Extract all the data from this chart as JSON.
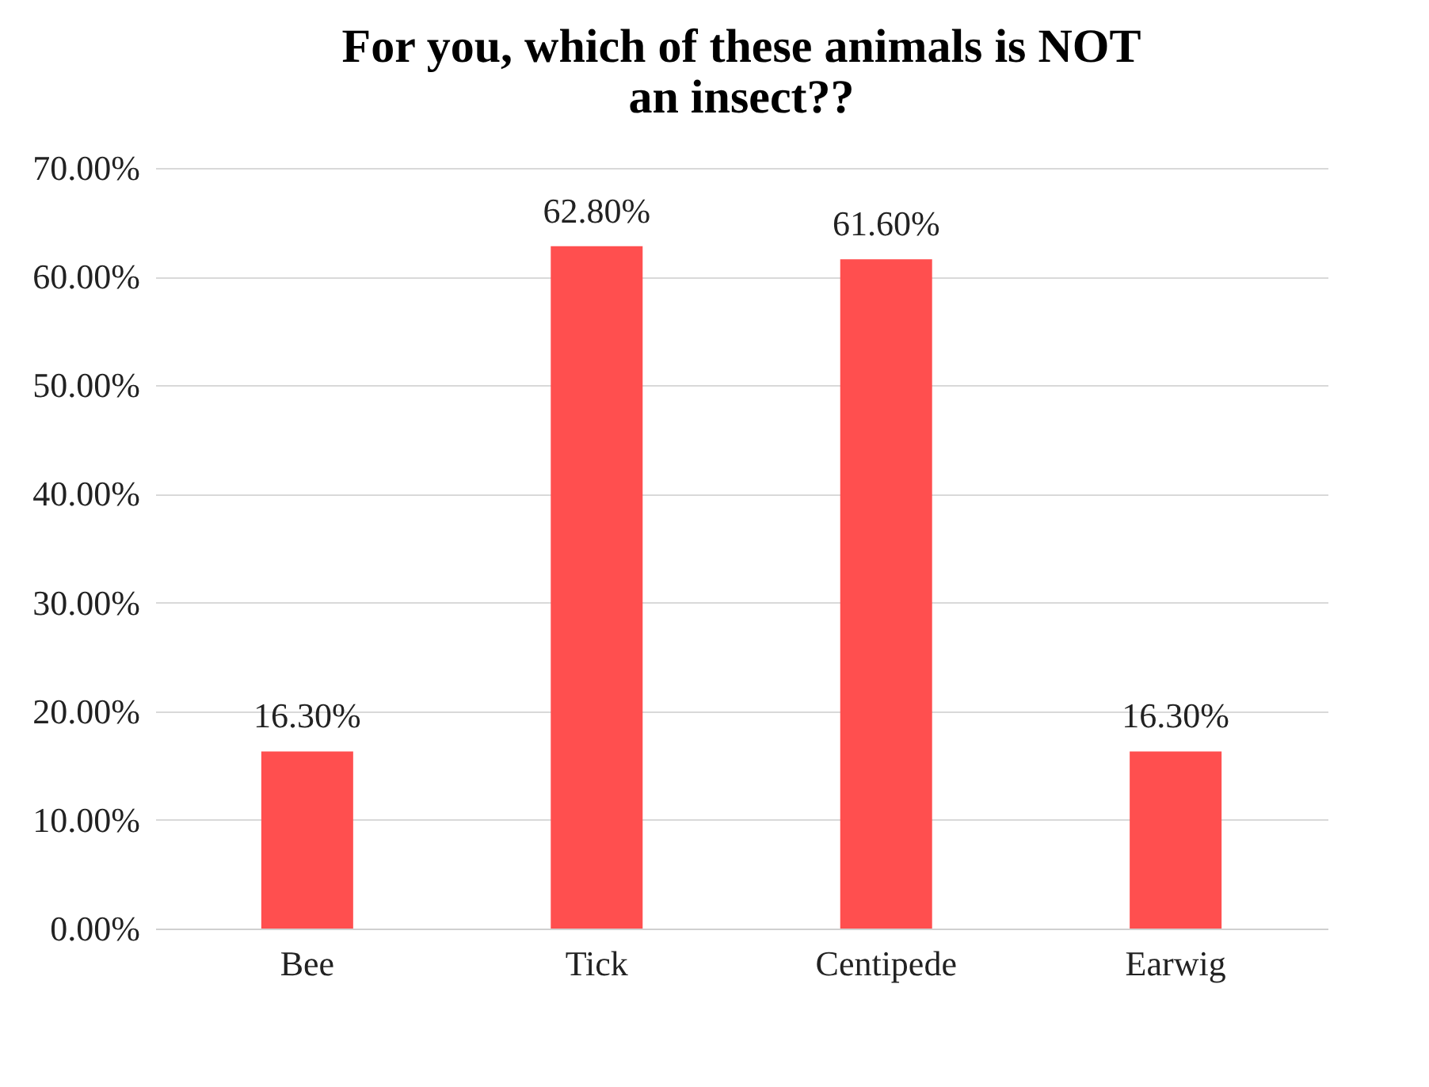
{
  "chart_data": {
    "type": "bar",
    "title": [
      "For you, which of these animals is NOT",
      "an insect??"
    ],
    "categories": [
      "Bee",
      "Tick",
      "Centipede",
      "Earwig"
    ],
    "values": [
      16.3,
      62.8,
      61.6,
      16.3
    ],
    "value_labels": [
      "16.30%",
      "62.80%",
      "61.60%",
      "16.30%"
    ],
    "color": "#ff4f4f",
    "ylim": [
      0,
      70
    ],
    "yticks": [
      {
        "value": 0,
        "label": "0.00%"
      },
      {
        "value": 10,
        "label": "10.00%"
      },
      {
        "value": 20,
        "label": "20.00%"
      },
      {
        "value": 30,
        "label": "30.00%"
      },
      {
        "value": 40,
        "label": "40.00%"
      },
      {
        "value": 50,
        "label": "50.00%"
      },
      {
        "value": 60,
        "label": "60.00%"
      },
      {
        "value": 70,
        "label": "70.00%"
      }
    ],
    "grid": "y"
  }
}
